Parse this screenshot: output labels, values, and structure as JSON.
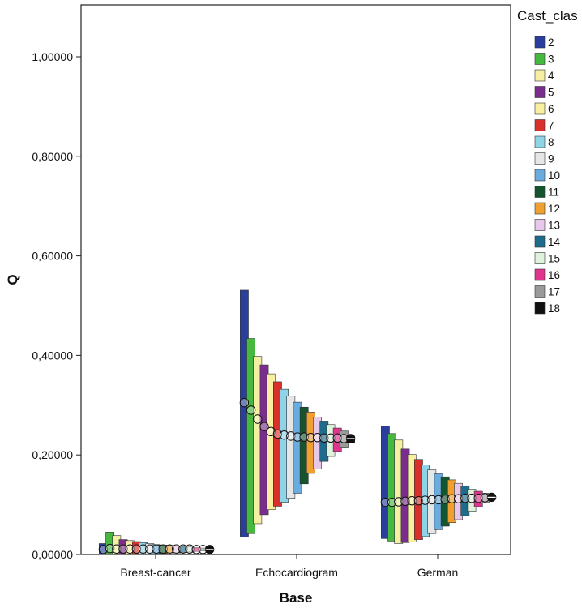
{
  "chart_data": {
    "type": "bar",
    "subtype": "high-low-close by group",
    "xlabel": "Base",
    "ylabel": "Q",
    "ylim": [
      0,
      1.1
    ],
    "yticks": [
      0,
      0.2,
      0.4,
      0.6,
      0.8,
      1.0
    ],
    "ytick_labels": [
      "0,00000",
      "0,20000",
      "0,40000",
      "0,60000",
      "0,80000",
      "1,00000"
    ],
    "categories": [
      "Breast-cancer",
      "Echocardiogram",
      "German"
    ],
    "grid": false,
    "legend": {
      "title": "Cast_clas",
      "placement": "right",
      "entries": [
        "2",
        "3",
        "4",
        "5",
        "6",
        "7",
        "8",
        "9",
        "10",
        "11",
        "12",
        "13",
        "14",
        "15",
        "16",
        "17",
        "18"
      ]
    },
    "colors": {
      "2": "#2a3f9d",
      "3": "#47b83f",
      "4": "#f4efa2",
      "5": "#7b2d8e",
      "6": "#f8f0a0",
      "7": "#d9302b",
      "8": "#8fd3e6",
      "9": "#e6e6e6",
      "10": "#6aacdd",
      "11": "#14552e",
      "12": "#f0a030",
      "13": "#e8c8ea",
      "14": "#1e6b8c",
      "15": "#dff2dc",
      "16": "#e0348e",
      "17": "#9a9a9a",
      "18": "#111111"
    },
    "series": [
      {
        "name": "Breast-cancer",
        "high": [
          0.022,
          0.045,
          0.038,
          0.03,
          0.028,
          0.026,
          0.024,
          0.022,
          0.02,
          0.019,
          0.018,
          0.017,
          0.016,
          0.015,
          0.014,
          0.013,
          0.012
        ],
        "low": [
          0.0,
          0.0,
          0.0,
          0.0,
          0.0,
          0.0,
          0.0,
          0.001,
          0.001,
          0.002,
          0.003,
          0.003,
          0.004,
          0.005,
          0.006,
          0.007,
          0.008
        ],
        "close": [
          0.01,
          0.012,
          0.011,
          0.011,
          0.011,
          0.011,
          0.011,
          0.011,
          0.011,
          0.011,
          0.011,
          0.011,
          0.011,
          0.011,
          0.01,
          0.01,
          0.01
        ]
      },
      {
        "name": "Echocardiogram",
        "high": [
          0.531,
          0.434,
          0.398,
          0.381,
          0.363,
          0.347,
          0.332,
          0.318,
          0.306,
          0.296,
          0.286,
          0.276,
          0.268,
          0.261,
          0.254,
          0.248,
          0.238
        ],
        "low": [
          0.035,
          0.042,
          0.062,
          0.08,
          0.09,
          0.097,
          0.105,
          0.113,
          0.123,
          0.142,
          0.163,
          0.172,
          0.187,
          0.197,
          0.207,
          0.214,
          0.224
        ],
        "close": [
          0.305,
          0.29,
          0.272,
          0.257,
          0.247,
          0.242,
          0.24,
          0.238,
          0.236,
          0.236,
          0.235,
          0.235,
          0.234,
          0.234,
          0.234,
          0.233,
          0.233
        ]
      },
      {
        "name": "German",
        "high": [
          0.258,
          0.243,
          0.23,
          0.212,
          0.201,
          0.191,
          0.18,
          0.17,
          0.162,
          0.156,
          0.15,
          0.143,
          0.138,
          0.131,
          0.127,
          0.123,
          0.118
        ],
        "low": [
          0.032,
          0.027,
          0.022,
          0.024,
          0.025,
          0.03,
          0.036,
          0.042,
          0.05,
          0.057,
          0.064,
          0.07,
          0.078,
          0.087,
          0.096,
          0.104,
          0.111
        ],
        "close": [
          0.105,
          0.105,
          0.106,
          0.107,
          0.108,
          0.108,
          0.109,
          0.11,
          0.11,
          0.111,
          0.112,
          0.112,
          0.113,
          0.113,
          0.113,
          0.114,
          0.115
        ]
      }
    ]
  }
}
